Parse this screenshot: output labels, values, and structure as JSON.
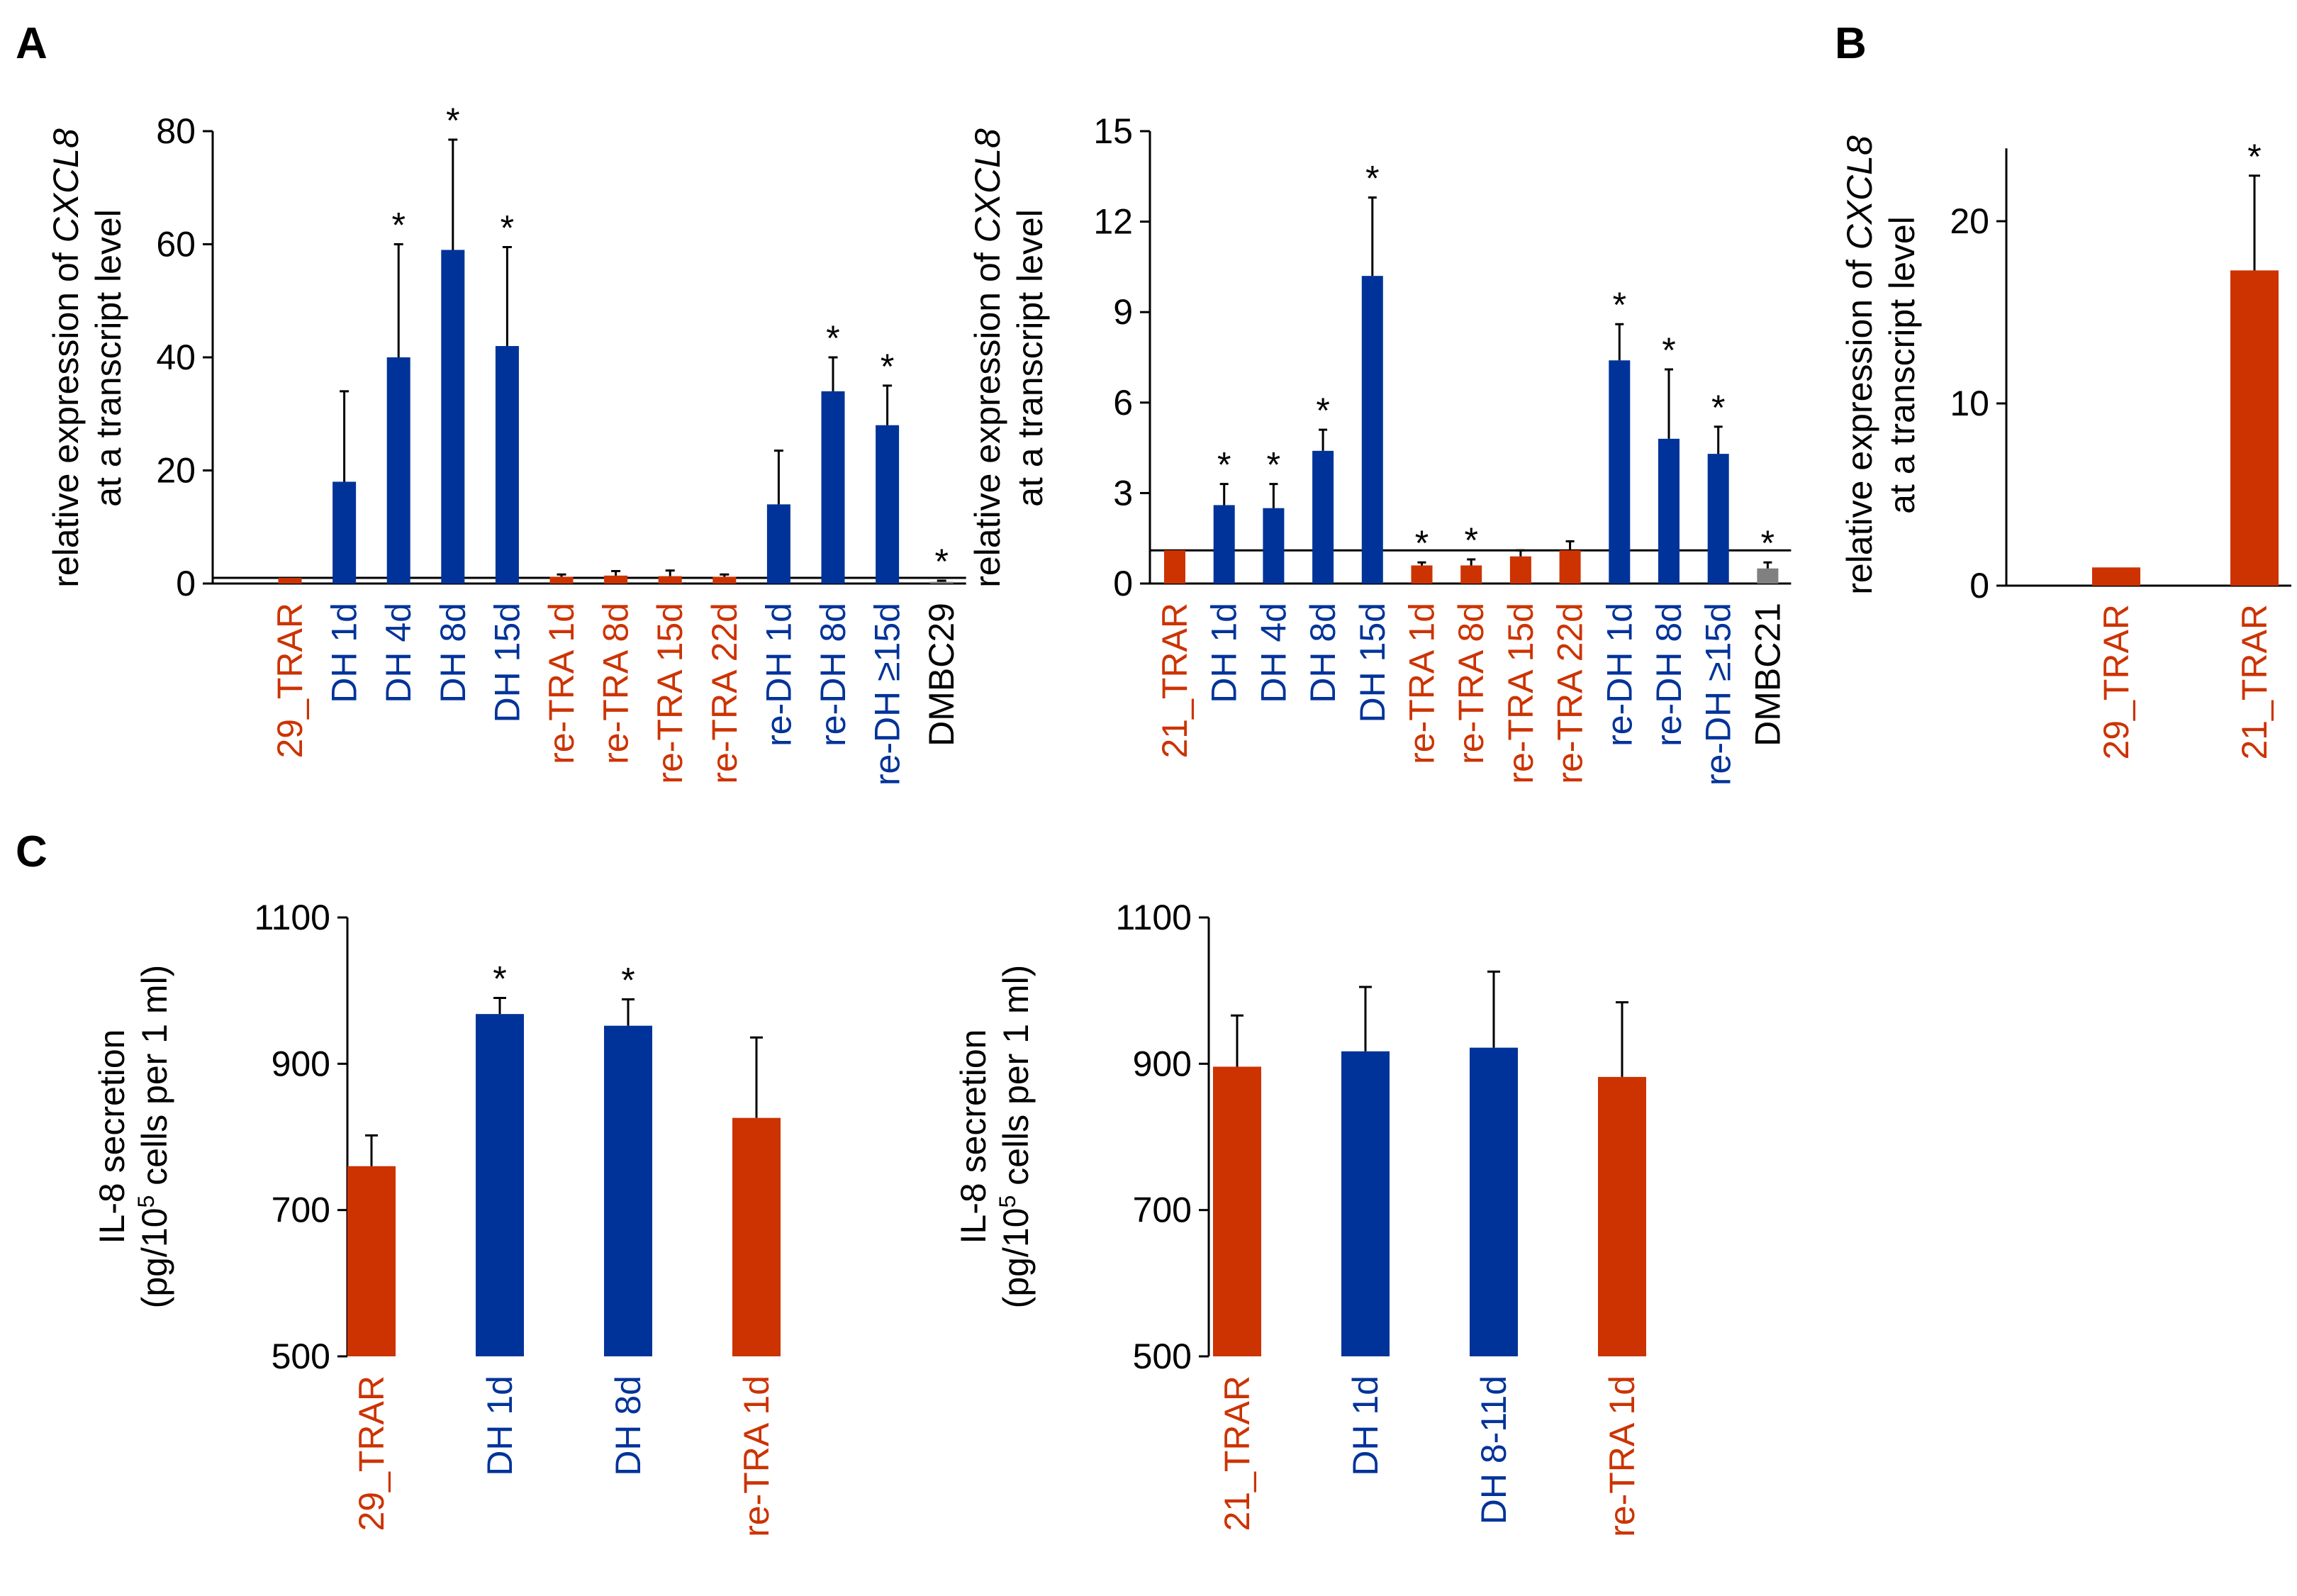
{
  "colors": {
    "trar": "#cc3300",
    "dh": "#003399",
    "dmbc": "#808080",
    "axis": "#000000"
  },
  "panels": {
    "A": "A",
    "B": "B",
    "C": "C"
  },
  "chart_data": [
    {
      "id": "A1",
      "panel": "A",
      "type": "bar",
      "ylabel_parts": [
        "relative expression of ",
        "CXCL8"
      ],
      "ylabel_line2": "at a transcript level",
      "ylim": [
        0,
        80
      ],
      "yticks": [
        0,
        20,
        40,
        60,
        80
      ],
      "reference_line": 1,
      "categories": [
        "29_TRAR",
        "DH 1d",
        "DH 4d",
        "DH 8d",
        "DH 15d",
        "re-TRA 1d",
        "re-TRA 8d",
        "re-TRA 15d",
        "re-TRA 22d",
        "re-DH 1d",
        "re-DH 8d",
        "re-DH ≥15d",
        "DMBC29"
      ],
      "groups": [
        "trar",
        "dh",
        "dh",
        "dh",
        "dh",
        "trar",
        "trar",
        "trar",
        "trar",
        "dh",
        "dh",
        "dh",
        "dmbc"
      ],
      "values": [
        1,
        18,
        40,
        59,
        42,
        1.2,
        1.4,
        1.3,
        1.2,
        14,
        34,
        28,
        0.3
      ],
      "errors": [
        0,
        16,
        20,
        19.5,
        17.5,
        0.4,
        0.8,
        1,
        0.4,
        9.5,
        6,
        7,
        0.2
      ],
      "significant": [
        false,
        false,
        true,
        true,
        true,
        false,
        false,
        false,
        false,
        false,
        true,
        true,
        true
      ],
      "star": "*"
    },
    {
      "id": "A2",
      "panel": "A",
      "type": "bar",
      "ylabel_parts": [
        "relative expression of ",
        "CXCL8"
      ],
      "ylabel_line2": "at a transcript level",
      "ylim": [
        0,
        15
      ],
      "yticks": [
        0,
        3,
        6,
        9,
        12,
        15
      ],
      "reference_line": 1.1,
      "categories": [
        "21_TRAR",
        "DH 1d",
        "DH 4d",
        "DH 8d",
        "DH 15d",
        "re-TRA 1d",
        "re-TRA 8d",
        "re-TRA 15d",
        "re-TRA 22d",
        "re-DH 1d",
        "re-DH 8d",
        "re-DH ≥15d",
        "DMBC21"
      ],
      "groups": [
        "trar",
        "dh",
        "dh",
        "dh",
        "dh",
        "trar",
        "trar",
        "trar",
        "trar",
        "dh",
        "dh",
        "dh",
        "dmbc"
      ],
      "values": [
        1.1,
        2.6,
        2.5,
        4.4,
        10.2,
        0.6,
        0.6,
        0.9,
        1.1,
        7.4,
        4.8,
        4.3,
        0.5
      ],
      "errors": [
        0,
        0.7,
        0.8,
        0.7,
        2.6,
        0.1,
        0.2,
        0.2,
        0.3,
        1.2,
        2.3,
        0.9,
        0.2
      ],
      "significant": [
        false,
        true,
        true,
        true,
        true,
        true,
        true,
        false,
        false,
        true,
        true,
        true,
        true
      ],
      "star": "*"
    },
    {
      "id": "B",
      "panel": "B",
      "type": "bar",
      "ylabel_parts": [
        "relative expression of ",
        "CXCL8"
      ],
      "ylabel_line2": "at a transcript level",
      "ylim": [
        0,
        24
      ],
      "yticks": [
        0,
        10,
        20
      ],
      "reference_line": null,
      "categories": [
        "29_TRAR",
        "21_TRAR"
      ],
      "groups": [
        "trar",
        "trar"
      ],
      "values": [
        1,
        17.3
      ],
      "errors": [
        0,
        5.2
      ],
      "significant": [
        false,
        true
      ],
      "star": "*"
    },
    {
      "id": "C1",
      "panel": "C",
      "type": "bar",
      "ylabel_line1": "IL-8 secretion",
      "ylabel_line2_parts": [
        "(pg/10",
        "5",
        " cells per 1 ml)"
      ],
      "ylim": [
        500,
        1100
      ],
      "yticks": [
        500,
        700,
        900,
        1100
      ],
      "reference_line": null,
      "categories": [
        "29_TRAR",
        "DH 1d",
        "DH 8d",
        "re-TRA 1d"
      ],
      "groups": [
        "trar",
        "dh",
        "dh",
        "trar"
      ],
      "values": [
        760,
        968,
        952,
        826
      ],
      "errors": [
        42,
        22,
        36,
        110
      ],
      "significant": [
        false,
        true,
        true,
        false
      ],
      "star": "*"
    },
    {
      "id": "C2",
      "panel": "C",
      "type": "bar",
      "ylabel_line1": "IL-8 secretion",
      "ylabel_line2_parts": [
        "(pg/10",
        "5",
        " cells per 1 ml)"
      ],
      "ylim": [
        500,
        1100
      ],
      "yticks": [
        500,
        700,
        900,
        1100
      ],
      "reference_line": null,
      "categories": [
        "21_TRAR",
        "DH 1d",
        "DH 8-11d",
        "re-TRA 1d"
      ],
      "groups": [
        "trar",
        "dh",
        "dh",
        "trar"
      ],
      "values": [
        896,
        917,
        922,
        882
      ],
      "errors": [
        70,
        88,
        104,
        102
      ],
      "significant": [
        false,
        false,
        false,
        false
      ],
      "star": "*"
    }
  ]
}
